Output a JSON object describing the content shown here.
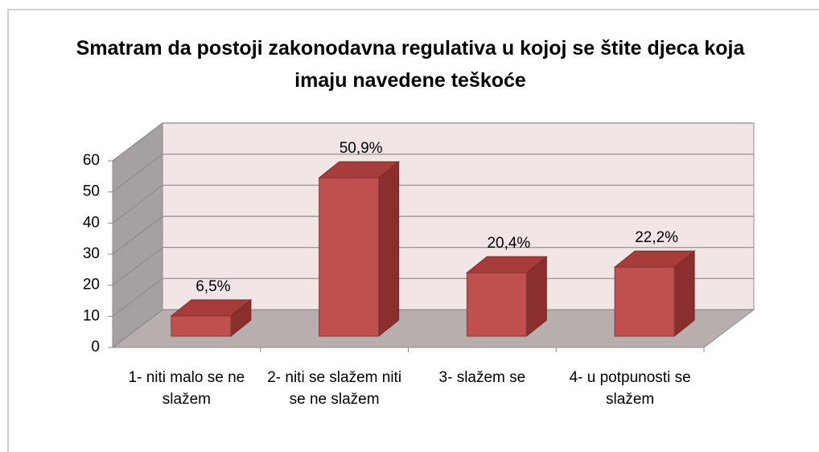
{
  "chart_data": {
    "type": "bar3d",
    "title": "Smatram da postoji zakonodavna regulativa u kojoj se štite djeca koja imaju navedene teškoće",
    "categories": [
      "1- niti malo se ne slažem",
      "2- niti se slažem niti se ne slažem",
      "3- slažem se",
      "4- u potpunosti se slažem"
    ],
    "values": [
      6.5,
      50.9,
      20.4,
      22.2
    ],
    "value_labels": [
      "6,5%",
      "50,9%",
      "20,4%",
      "22,2%"
    ],
    "color": "#c0504d",
    "ylim": [
      0,
      60
    ],
    "yticks": [
      0,
      10,
      20,
      30,
      40,
      50,
      60
    ],
    "grid": true
  }
}
